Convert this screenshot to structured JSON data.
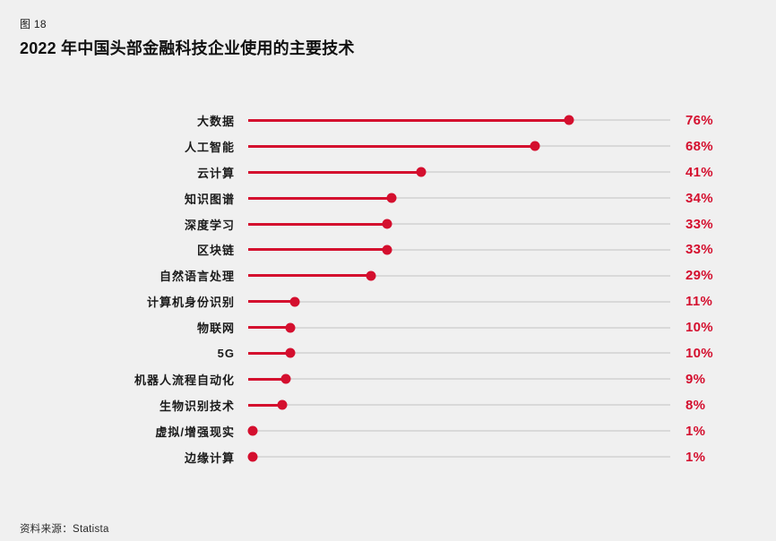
{
  "figure_label": "图 18",
  "title": "2022 年中国头部金融科技企业使用的主要技术",
  "source": "资料来源：Statista",
  "colors": {
    "accent": "#d40f2e",
    "track": "#d9d9d9",
    "background": "#f0f0f0",
    "text": "#1a1a1a"
  },
  "chart_data": {
    "type": "bar",
    "subtype": "horizontal-lollipop",
    "title": "2022 年中国头部金融科技企业使用的主要技术",
    "categories": [
      "大数据",
      "人工智能",
      "云计算",
      "知识图谱",
      "深度学习",
      "区块链",
      "自然语言处理",
      "计算机身份识别",
      "物联网",
      "5G",
      "机器人流程自动化",
      "生物识别技术",
      "虚拟/增强现实",
      "边缘计算"
    ],
    "values": [
      76,
      68,
      41,
      34,
      33,
      33,
      29,
      11,
      10,
      10,
      9,
      8,
      1,
      1
    ],
    "unit": "%",
    "xlim": [
      0,
      100
    ],
    "grid": false,
    "legend": false,
    "value_label_position": "right",
    "source": "资料来源：Statista"
  }
}
